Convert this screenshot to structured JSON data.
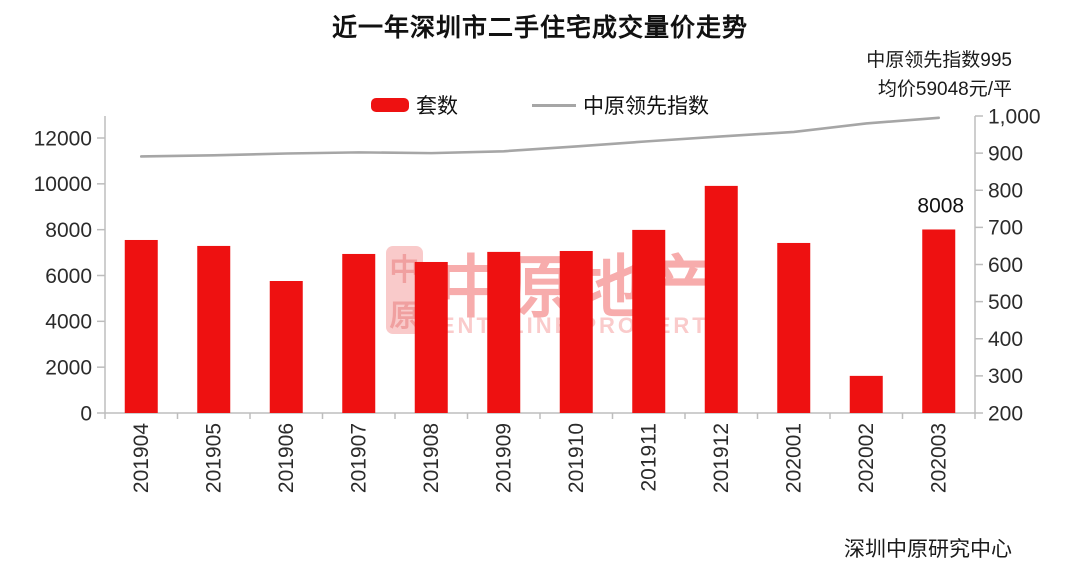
{
  "chart_data": {
    "type": "bar",
    "title": "近一年深圳市二手住宅成交量价走势",
    "categories": [
      "201904",
      "201905",
      "201906",
      "201907",
      "201908",
      "201909",
      "201910",
      "201911",
      "201912",
      "202001",
      "202002",
      "202003"
    ],
    "series": [
      {
        "name": "套数",
        "type": "bar",
        "axis": "left",
        "values": [
          7550,
          7290,
          5760,
          6940,
          6590,
          7030,
          7070,
          7990,
          9910,
          7420,
          1620,
          8008
        ]
      },
      {
        "name": "中原领先指数",
        "type": "line",
        "axis": "right",
        "values": [
          891,
          894,
          899,
          902,
          900,
          905,
          918,
          932,
          945,
          957,
          980,
          995
        ]
      }
    ],
    "left_axis": {
      "min": 0,
      "max": 12000,
      "tick_step": 2000,
      "tick_labels": [
        "0",
        "2000",
        "4000",
        "6000",
        "8000",
        "10000",
        "12000"
      ]
    },
    "right_axis": {
      "min": 200,
      "max": 1000,
      "tick_step": 100,
      "tick_labels": [
        "200",
        "300",
        "400",
        "500",
        "600",
        "700",
        "800",
        "900",
        "1,000"
      ]
    },
    "data_label": {
      "series": "套数",
      "category": "202003",
      "text": "8008"
    },
    "grid": false,
    "legend_position": "top"
  },
  "annotations": {
    "line1": "中原领先指数995",
    "line2": "均价59048元/平"
  },
  "source": "深圳中原研究中心",
  "watermark": {
    "seal_top_char": "中",
    "seal_bottom_char": "原",
    "text": "中原地产",
    "subtext": "CENTALINE PROPERTY"
  },
  "colors": {
    "bar": "#ee1111",
    "line": "#a6a6a6",
    "axis": "#bdbdbd",
    "tick_text": "#2b2b2b",
    "watermark_seal_bg": "#f9caca",
    "watermark_seal_glyph": "#f0a0a0",
    "watermark_text": "rgba(240,90,90,0.50)",
    "watermark_subtext": "rgba(244,140,140,0.45)"
  }
}
